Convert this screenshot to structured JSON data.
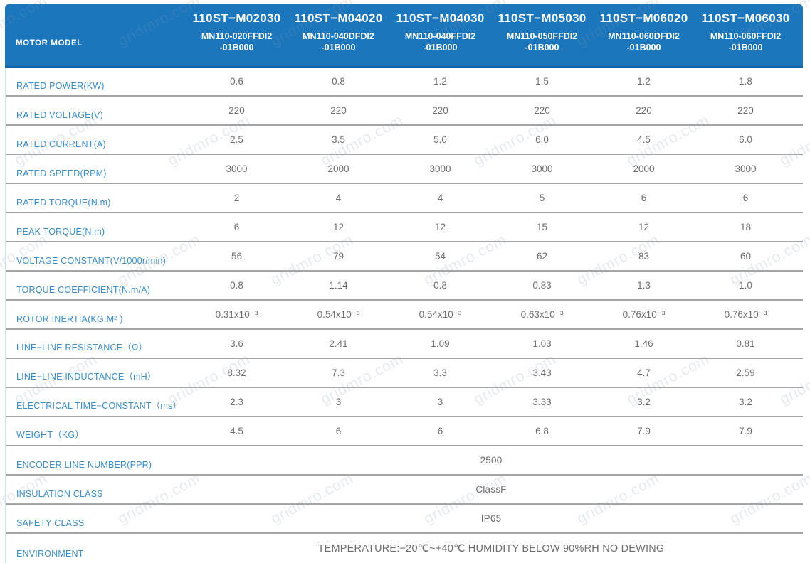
{
  "watermark": "gridmro.com",
  "colors": {
    "header_bg": "#1c76bc",
    "header_text": "#ffffff",
    "row_label": "#3d8dc6",
    "value_text": "#6e6e6e",
    "row_border": "#a6a6a6"
  },
  "header": {
    "row_label": "MOTOR MODEL",
    "columns": [
      {
        "model": "110ST−M02030",
        "sub1": "MN110-020FFDI2",
        "sub2": "-01B000"
      },
      {
        "model": "110ST−M04020",
        "sub1": "MN110-040DFDI2",
        "sub2": "-01B000"
      },
      {
        "model": "110ST−M04030",
        "sub1": "MN110-040FFDI2",
        "sub2": "-01B000"
      },
      {
        "model": "110ST−M05030",
        "sub1": "MN110-050FFDI2",
        "sub2": "-01B000"
      },
      {
        "model": "110ST−M06020",
        "sub1": "MN110-060DFDI2",
        "sub2": "-01B000"
      },
      {
        "model": "110ST−M06030",
        "sub1": "MN110-060FFDI2",
        "sub2": "-01B000"
      }
    ]
  },
  "rows": [
    {
      "label": "RATED POWER(KW)",
      "values": [
        "0.6",
        "0.8",
        "1.2",
        "1.5",
        "1.2",
        "1.8"
      ]
    },
    {
      "label": "RATED VOLTAGE(V)",
      "values": [
        "220",
        "220",
        "220",
        "220",
        "220",
        "220"
      ]
    },
    {
      "label": "RATED CURRENT(A)",
      "values": [
        "2.5",
        "3.5",
        "5.0",
        "6.0",
        "4.5",
        "6.0"
      ]
    },
    {
      "label": "RATED SPEED(RPM)",
      "values": [
        "3000",
        "2000",
        "3000",
        "3000",
        "2000",
        "3000"
      ]
    },
    {
      "label": "RATED TORQUE(N.m)",
      "values": [
        "2",
        "4",
        "4",
        "5",
        "6",
        "6"
      ]
    },
    {
      "label": "PEAK TORQUE(N.m)",
      "values": [
        "6",
        "12",
        "12",
        "15",
        "12",
        "18"
      ]
    },
    {
      "label": "VOLTAGE CONSTANT(V/1000r/min)",
      "values": [
        "56",
        "79",
        "54",
        "62",
        "83",
        "60"
      ]
    },
    {
      "label": "TORQUE COEFFICIENT(N.m/A)",
      "values": [
        "0.8",
        "1.14",
        "0.8",
        "0.83",
        "1.3",
        "1.0"
      ]
    },
    {
      "label": "ROTOR INERTIA(KG.M² )",
      "values": [
        "0.31x10⁻³",
        "0.54x10⁻³",
        "0.54x10⁻³",
        "0.63x10⁻³",
        "0.76x10⁻³",
        "0.76x10⁻³"
      ]
    },
    {
      "label": "LINE−LINE RESISTANCE（Ω）",
      "values": [
        "3.6",
        "2.41",
        "1.09",
        "1.03",
        "1.46",
        "0.81"
      ]
    },
    {
      "label": "LINE−LINE INDUCTANCE（mH）",
      "values": [
        "8.32",
        "7.3",
        "3.3",
        "3.43",
        "4.7",
        "2.59"
      ]
    },
    {
      "label": "ELECTRICAL TIME−CONSTANT（ms）",
      "values": [
        "2.3",
        "3",
        "3",
        "3.33",
        "3.2",
        "3.2"
      ]
    },
    {
      "label": "WEIGHT（KG）",
      "values": [
        "4.5",
        "6",
        "6",
        "6.8",
        "7.9",
        "7.9"
      ]
    }
  ],
  "span_rows": [
    {
      "label": "ENCODER LINE NUMBER(PPR)",
      "value": "2500"
    },
    {
      "label": "INSULATION CLASS",
      "value": "ClassF"
    },
    {
      "label": "SAFETY CLASS",
      "value": "IP65"
    },
    {
      "label": "ENVIRONMENT",
      "value": "TEMPERATURE:−20℃~+40℃  HUMIDITY BELOW 90%RH NO DEWING"
    }
  ]
}
